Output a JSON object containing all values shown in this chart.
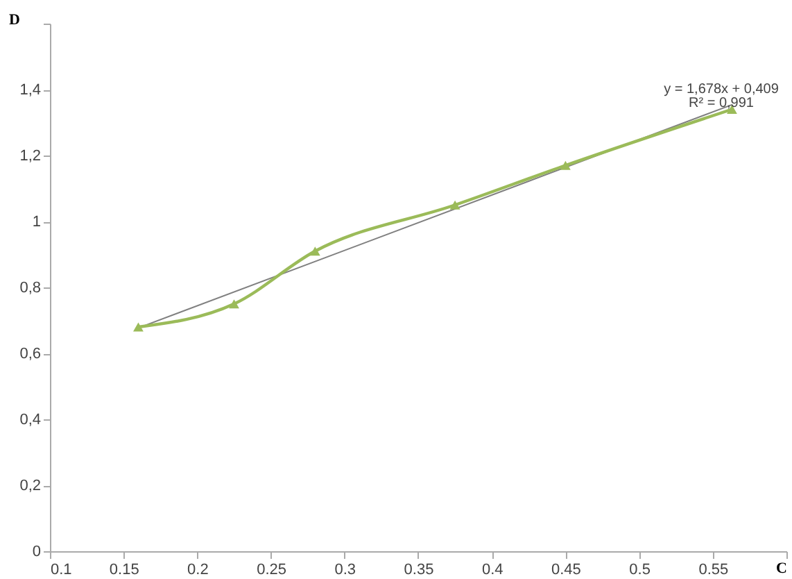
{
  "chart_data": {
    "type": "line",
    "xlabel": "C",
    "ylabel": "D",
    "x": [
      0.16,
      0.225,
      0.28,
      0.375,
      0.45,
      0.563
    ],
    "series": [
      {
        "type": "line",
        "color": "#808080",
        "x": [
          0.16,
          0.563
        ],
        "values": [
          0.677,
          1.354
        ],
        "marker": "none"
      },
      {
        "color": "#9bbb59",
        "values": [
          0.68,
          0.75,
          0.91,
          1.05,
          1.17,
          1.34
        ]
      }
    ],
    "marker": "triangle",
    "line_style": "solid",
    "grid": false,
    "xlim": [
      0.1,
      0.6
    ],
    "xticks": [
      0.1,
      0.15,
      0.2,
      0.25,
      0.3,
      0.35,
      0.4,
      0.45,
      0.5,
      0.55,
      {
        "value": 0.6,
        "label": null
      }
    ],
    "ylim": [
      0,
      1.6
    ],
    "yticks": [
      0,
      {
        "value": 0.2,
        "label": "0,2"
      },
      {
        "value": 0.4,
        "label": "0,4"
      },
      {
        "value": 0.6,
        "label": "0,6"
      },
      {
        "value": 0.8,
        "label": "0,8"
      },
      1,
      {
        "value": 1.2,
        "label": "1,2"
      },
      {
        "value": 1.4,
        "label": "1,4"
      },
      {
        "value": 1.6,
        "label": null
      }
    ],
    "annotations": [
      "y = 1,678x + 0,409",
      "R² = 0,991"
    ]
  }
}
